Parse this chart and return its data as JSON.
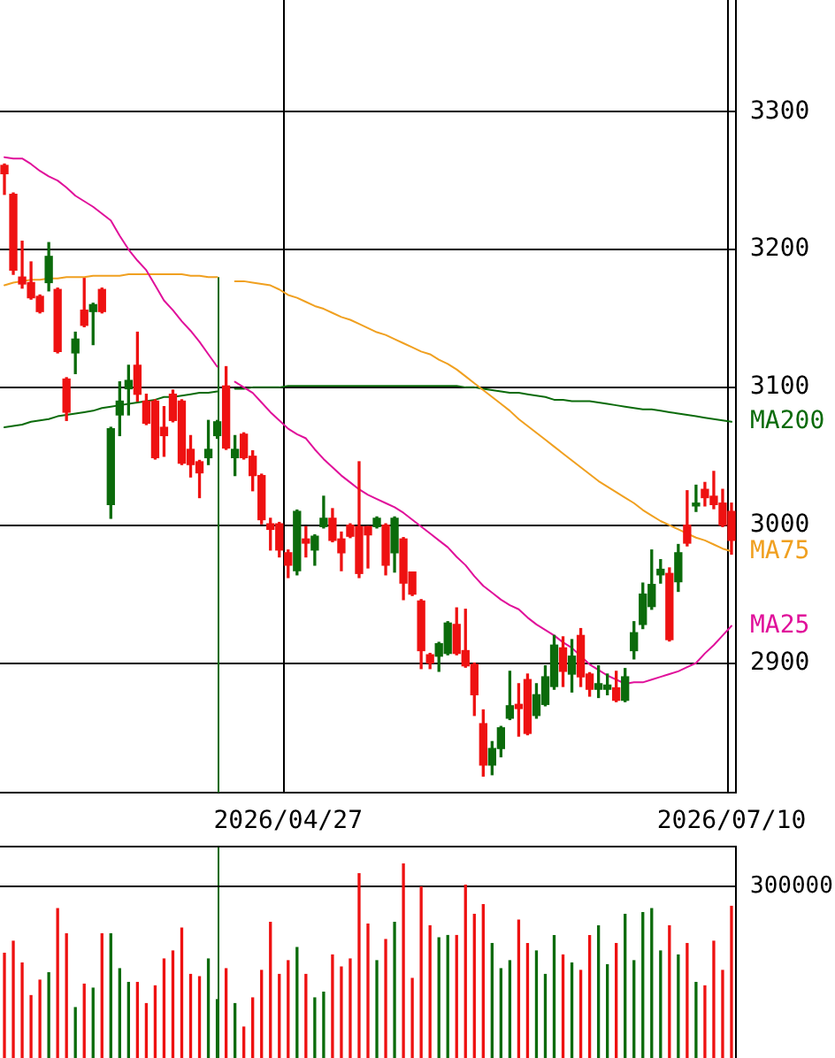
{
  "chart_data": [
    {
      "type": "candlestick",
      "categories": [
        null,
        null,
        null,
        null,
        null,
        null,
        null,
        null,
        null,
        null,
        null,
        null,
        null,
        null,
        null,
        null,
        null,
        null,
        null,
        null,
        null,
        null,
        null,
        null,
        null,
        null,
        null,
        null,
        null,
        null,
        null,
        null,
        "2026/04/27",
        null,
        null,
        null,
        null,
        null,
        null,
        null,
        null,
        null,
        null,
        null,
        null,
        null,
        null,
        null,
        null,
        null,
        null,
        null,
        null,
        null,
        null,
        null,
        null,
        null,
        null,
        null,
        null,
        null,
        null,
        null,
        null,
        null,
        null,
        null,
        null,
        null,
        null,
        null,
        null,
        null,
        null,
        null,
        null,
        null,
        null,
        null,
        null,
        null,
        "2026/07/10"
      ],
      "ohlc": [
        [
          3261,
          3262,
          3240,
          3255
        ],
        [
          3240,
          3241,
          3182,
          3185
        ],
        [
          3180,
          3206,
          3172,
          3175
        ],
        [
          3176,
          3191,
          3164,
          3165
        ],
        [
          3166,
          3167,
          3154,
          3155
        ],
        [
          3176,
          3205,
          3170,
          3195
        ],
        [
          3171,
          3172,
          3125,
          3126
        ],
        [
          3106,
          3107,
          3076,
          3082
        ],
        [
          3125,
          3140,
          3110,
          3135
        ],
        [
          3156,
          3179,
          3144,
          3145
        ],
        [
          3155,
          3161,
          3131,
          3160
        ],
        [
          3171,
          3172,
          3154,
          3155
        ],
        [
          3015,
          3071,
          3005,
          3070
        ],
        [
          3080,
          3104,
          3065,
          3090
        ],
        [
          3099,
          3116,
          3080,
          3105
        ],
        [
          3116,
          3140,
          3090,
          3095
        ],
        [
          3090,
          3095,
          3073,
          3074
        ],
        [
          3090,
          3091,
          3048,
          3049
        ],
        [
          3071,
          3086,
          3050,
          3065
        ],
        [
          3095,
          3098,
          3075,
          3076
        ],
        [
          3090,
          3091,
          3044,
          3045
        ],
        [
          3055,
          3065,
          3035,
          3044
        ],
        [
          3046,
          3047,
          3020,
          3038
        ],
        [
          3049,
          3076,
          3044,
          3055
        ],
        [
          3065,
          3076,
          3063,
          3075
        ],
        [
          3101,
          3115,
          3055,
          3056
        ],
        [
          3049,
          3065,
          3036,
          3055
        ],
        [
          3066,
          3067,
          3048,
          3049
        ],
        [
          3050,
          3054,
          3025,
          3036
        ],
        [
          3036,
          3037,
          3001,
          3004
        ],
        [
          3001,
          3005,
          2982,
          2997
        ],
        [
          3001,
          3002,
          2977,
          2982
        ],
        [
          2980,
          2982,
          2962,
          2971
        ],
        [
          2967,
          3011,
          2964,
          3010
        ],
        [
          2990,
          2999,
          2977,
          2987
        ],
        [
          2982,
          2993,
          2971,
          2992
        ],
        [
          2999,
          3021,
          2998,
          3005
        ],
        [
          3005,
          3012,
          2988,
          2989
        ],
        [
          2990,
          2995,
          2967,
          2980
        ],
        [
          3000,
          3001,
          2991,
          2992
        ],
        [
          2999,
          3046,
          2962,
          2965
        ],
        [
          2999,
          2999,
          2969,
          2993
        ],
        [
          2999,
          3006,
          2998,
          3005
        ],
        [
          3000,
          3001,
          2964,
          2971
        ],
        [
          2980,
          3006,
          2966,
          3005
        ],
        [
          2990,
          2991,
          2946,
          2958
        ],
        [
          2966,
          2966,
          2949,
          2950
        ],
        [
          2945,
          2946,
          2896,
          2909
        ],
        [
          2906,
          2907,
          2896,
          2900
        ],
        [
          2905,
          2915,
          2894,
          2914
        ],
        [
          2907,
          2930,
          2906,
          2929
        ],
        [
          2928,
          2940,
          2906,
          2907
        ],
        [
          2909,
          2939,
          2897,
          2898
        ],
        [
          2899,
          2900,
          2862,
          2877
        ],
        [
          2856,
          2866,
          2818,
          2826
        ],
        [
          2826,
          2843,
          2819,
          2838
        ],
        [
          2838,
          2854,
          2832,
          2853
        ],
        [
          2860,
          2894,
          2859,
          2869
        ],
        [
          2870,
          2885,
          2847,
          2867
        ],
        [
          2888,
          2892,
          2848,
          2849
        ],
        [
          2862,
          2885,
          2860,
          2877
        ],
        [
          2870,
          2898,
          2869,
          2890
        ],
        [
          2883,
          2920,
          2881,
          2913
        ],
        [
          2911,
          2919,
          2883,
          2894
        ],
        [
          2892,
          2917,
          2879,
          2905
        ],
        [
          2920,
          2925,
          2883,
          2890
        ],
        [
          2892,
          2893,
          2876,
          2881
        ],
        [
          2881,
          2898,
          2875,
          2885
        ],
        [
          2881,
          2892,
          2877,
          2884
        ],
        [
          2882,
          2894,
          2872,
          2873
        ],
        [
          2873,
          2896,
          2872,
          2890
        ],
        [
          2909,
          2930,
          2903,
          2922
        ],
        [
          2928,
          2958,
          2925,
          2950
        ],
        [
          2941,
          2982,
          2939,
          2957
        ],
        [
          2964,
          2975,
          2958,
          2968
        ],
        [
          2965,
          2969,
          2916,
          2917
        ],
        [
          2959,
          2986,
          2952,
          2980
        ],
        [
          3000,
          3025,
          2985,
          2987
        ],
        [
          3014,
          3029,
          3010,
          3016
        ],
        [
          3026,
          3031,
          3014,
          3020
        ],
        [
          3021,
          3039,
          3012,
          3015
        ],
        [
          3016,
          3026,
          2999,
          3000
        ],
        [
          3010,
          3016,
          2979,
          2989
        ]
      ],
      "colors": [
        "#ee1111",
        "#ee1111",
        "#ee1111",
        "#ee1111",
        "#ee1111",
        "#0b6b0b",
        "#ee1111",
        "#ee1111",
        "#0b6b0b",
        "#ee1111",
        "#0b6b0b",
        "#ee1111",
        "#0b6b0b",
        "#0b6b0b",
        "#0b6b0b",
        "#ee1111",
        "#ee1111",
        "#ee1111",
        "#ee1111",
        "#ee1111",
        "#ee1111",
        "#ee1111",
        "#ee1111",
        "#0b6b0b",
        "#0b6b0b",
        "#ee1111",
        "#0b6b0b",
        "#ee1111",
        "#ee1111",
        "#ee1111",
        "#ee1111",
        "#ee1111",
        "#ee1111",
        "#0b6b0b",
        "#ee1111",
        "#0b6b0b",
        "#0b6b0b",
        "#ee1111",
        "#ee1111",
        "#ee1111",
        "#ee1111",
        "#ee1111",
        "#0b6b0b",
        "#ee1111",
        "#0b6b0b",
        "#ee1111",
        "#ee1111",
        "#ee1111",
        "#ee1111",
        "#0b6b0b",
        "#0b6b0b",
        "#ee1111",
        "#ee1111",
        "#ee1111",
        "#ee1111",
        "#0b6b0b",
        "#0b6b0b",
        "#0b6b0b",
        "#ee1111",
        "#ee1111",
        "#0b6b0b",
        "#0b6b0b",
        "#0b6b0b",
        "#ee1111",
        "#0b6b0b",
        "#ee1111",
        "#ee1111",
        "#0b6b0b",
        "#0b6b0b",
        "#ee1111",
        "#0b6b0b",
        "#0b6b0b",
        "#0b6b0b",
        "#0b6b0b",
        "#0b6b0b",
        "#ee1111",
        "#0b6b0b",
        "#ee1111",
        "#0b6b0b",
        "#ee1111",
        "#ee1111",
        "#ee1111",
        "#ee1111"
      ],
      "series": [
        {
          "name": "MA25",
          "type": "line",
          "color": "#e0109a",
          "values": [
            3267,
            3266,
            3266,
            3262,
            3257,
            3253,
            3250,
            3245,
            3239,
            3235,
            3231,
            3226,
            3221,
            3210,
            3200,
            3192,
            3185,
            3174,
            3163,
            3156,
            3148,
            3141,
            3133,
            3124,
            3115,
            null,
            3104,
            3100,
            3096,
            3089,
            3082,
            3076,
            3070,
            3066,
            3063,
            3055,
            3048,
            3042,
            3036,
            3031,
            3026,
            3022,
            3019,
            3016,
            3013,
            3009,
            3004,
            2999,
            2994,
            2989,
            2984,
            2977,
            2971,
            2963,
            2956,
            2951,
            2946,
            2942,
            2939,
            2933,
            2928,
            2924,
            2920,
            2915,
            2911,
            2905,
            2899,
            2895,
            2891,
            2888,
            2885,
            2886,
            2886,
            2888,
            2890,
            2892,
            2894,
            2897,
            2900,
            2907,
            2913,
            2920,
            2927
          ]
        },
        {
          "name": "MA75",
          "type": "line",
          "color": "#f0a020",
          "values": [
            3174,
            3176,
            3177,
            3178,
            3178,
            3179,
            3179,
            3180,
            3180,
            3180,
            3181,
            3181,
            3181,
            3181,
            3182,
            3182,
            3182,
            3182,
            3182,
            3182,
            3182,
            3181,
            3181,
            3180,
            3180,
            null,
            3177,
            3177,
            3176,
            3175,
            3174,
            3171,
            3167,
            3165,
            3162,
            3159,
            3157,
            3154,
            3151,
            3149,
            3146,
            3143,
            3140,
            3138,
            3135,
            3132,
            3129,
            3126,
            3124,
            3120,
            3117,
            3113,
            3108,
            3103,
            3098,
            3093,
            3088,
            3083,
            3077,
            3072,
            3067,
            3062,
            3057,
            3052,
            3047,
            3042,
            3037,
            3032,
            3028,
            3024,
            3020,
            3016,
            3011,
            3007,
            3003,
            3000,
            2997,
            2994,
            2991,
            2989,
            2986,
            2983,
            2981
          ]
        },
        {
          "name": "MA200",
          "type": "line",
          "color": "#0b6b0b",
          "values": [
            3071,
            3072,
            3073,
            3075,
            3076,
            3077,
            3079,
            3080,
            3081,
            3082,
            3083,
            3085,
            3086,
            3087,
            3088,
            3089,
            3090,
            3091,
            3093,
            3093,
            3094,
            3095,
            3096,
            3096,
            3097,
            null,
            3099,
            3099,
            3100,
            3100,
            3100,
            3100,
            3101,
            3101,
            3101,
            3101,
            3101,
            3101,
            3101,
            3101,
            3101,
            3101,
            3101,
            3101,
            3101,
            3101,
            3101,
            3101,
            3101,
            3101,
            3101,
            3101,
            3100,
            3100,
            3099,
            3098,
            3097,
            3096,
            3096,
            3095,
            3094,
            3093,
            3091,
            3091,
            3090,
            3090,
            3090,
            3089,
            3088,
            3087,
            3086,
            3085,
            3084,
            3084,
            3083,
            3082,
            3081,
            3080,
            3079,
            3078,
            3077,
            3076,
            3075
          ]
        }
      ],
      "ylim": [
        2806,
        3381
      ],
      "yticks": [
        2900,
        3000,
        3100,
        3200,
        3300
      ],
      "grid": true
    },
    {
      "type": "bar",
      "categories": [
        null,
        null,
        null,
        null,
        null,
        null,
        null,
        null,
        null,
        null,
        null,
        null,
        null,
        null,
        null,
        null,
        null,
        null,
        null,
        null,
        null,
        null,
        null,
        null,
        null,
        null,
        null,
        null,
        null,
        null,
        null,
        null,
        null,
        null,
        null,
        null,
        null,
        null,
        null,
        null,
        null,
        null,
        null,
        null,
        null,
        null,
        null,
        null,
        null,
        null,
        null,
        null,
        null,
        null,
        null,
        null,
        null,
        null,
        null,
        null,
        null,
        null,
        null,
        null,
        null,
        null,
        null,
        null,
        null,
        null,
        null,
        null,
        null,
        null,
        null,
        null,
        null,
        null,
        null,
        null,
        null,
        null,
        null
      ],
      "values": [
        183000,
        204000,
        166000,
        109000,
        136000,
        149000,
        261000,
        217000,
        88000,
        129000,
        122000,
        217000,
        217000,
        156000,
        132000,
        132000,
        95000,
        126000,
        173000,
        187000,
        227000,
        146000,
        142000,
        173000,
        102000,
        156000,
        95000,
        54000,
        105000,
        153000,
        237000,
        146000,
        170000,
        193000,
        146000,
        105000,
        115000,
        180000,
        159000,
        173000,
        322000,
        234000,
        170000,
        207000,
        237000,
        339000,
        139000,
        299000,
        231000,
        210000,
        214000,
        214000,
        302000,
        251000,
        268000,
        200000,
        156000,
        170000,
        241000,
        200000,
        187000,
        146000,
        214000,
        180000,
        166000,
        153000,
        214000,
        231000,
        163000,
        200000,
        251000,
        170000,
        254000,
        261000,
        187000,
        231000,
        180000,
        200000,
        132000,
        126000,
        204000,
        153000,
        265000
      ],
      "colors": [
        "#ee1111",
        "#ee1111",
        "#ee1111",
        "#ee1111",
        "#ee1111",
        "#0b6b0b",
        "#ee1111",
        "#ee1111",
        "#0b6b0b",
        "#ee1111",
        "#0b6b0b",
        "#ee1111",
        "#0b6b0b",
        "#0b6b0b",
        "#0b6b0b",
        "#ee1111",
        "#ee1111",
        "#ee1111",
        "#ee1111",
        "#ee1111",
        "#ee1111",
        "#ee1111",
        "#ee1111",
        "#0b6b0b",
        "#0b6b0b",
        "#ee1111",
        "#0b6b0b",
        "#ee1111",
        "#ee1111",
        "#ee1111",
        "#ee1111",
        "#ee1111",
        "#ee1111",
        "#0b6b0b",
        "#ee1111",
        "#0b6b0b",
        "#0b6b0b",
        "#ee1111",
        "#ee1111",
        "#ee1111",
        "#ee1111",
        "#ee1111",
        "#0b6b0b",
        "#ee1111",
        "#0b6b0b",
        "#ee1111",
        "#ee1111",
        "#ee1111",
        "#ee1111",
        "#0b6b0b",
        "#0b6b0b",
        "#ee1111",
        "#ee1111",
        "#ee1111",
        "#ee1111",
        "#0b6b0b",
        "#0b6b0b",
        "#0b6b0b",
        "#ee1111",
        "#ee1111",
        "#0b6b0b",
        "#0b6b0b",
        "#0b6b0b",
        "#ee1111",
        "#0b6b0b",
        "#ee1111",
        "#ee1111",
        "#0b6b0b",
        "#0b6b0b",
        "#ee1111",
        "#0b6b0b",
        "#0b6b0b",
        "#0b6b0b",
        "#0b6b0b",
        "#0b6b0b",
        "#ee1111",
        "#0b6b0b",
        "#ee1111",
        "#0b6b0b",
        "#ee1111",
        "#ee1111",
        "#ee1111",
        "#ee1111"
      ],
      "ylim": [
        0,
        371000
      ],
      "yticks": [
        300000
      ],
      "ref_lines": [
        {
          "axis": "y",
          "value": 300000
        }
      ]
    }
  ]
}
